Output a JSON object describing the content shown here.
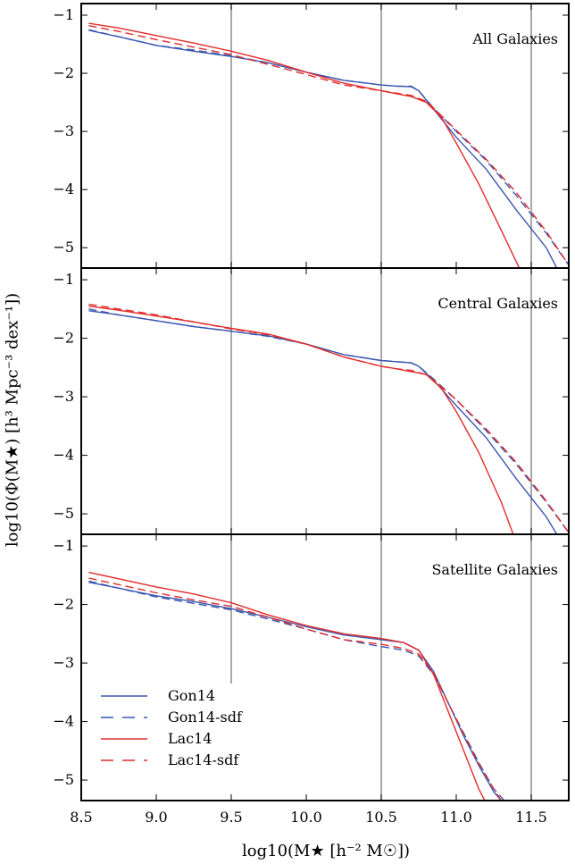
{
  "chart_data": {
    "type": "line",
    "layout": "three vertically stacked panels sharing the x axis",
    "xlabel": "log10(M★ [h⁻² M☉])",
    "ylabel": "log10(Φ(M★) [h³ Mpc⁻³ dex⁻¹])",
    "xlim": [
      8.5,
      11.75
    ],
    "ylim": [
      -5.35,
      -0.8
    ],
    "xticks": [
      8.5,
      9.0,
      9.5,
      10.0,
      10.5,
      11.0,
      11.5
    ],
    "xtick_labels": [
      "8.5",
      "9.0",
      "9.5",
      "10.0",
      "10.5",
      "11.0",
      "11.5"
    ],
    "yticks": [
      -1,
      -2,
      -3,
      -4,
      -5
    ],
    "ytick_labels": [
      "−1",
      "−2",
      "−3",
      "−4",
      "−5"
    ],
    "vlines": [
      9.5,
      10.5,
      11.5
    ],
    "legend_position": "lower-left of bottom panel",
    "legend": [
      {
        "label": "Gon14",
        "color": "#3a56b0",
        "dash": "solid"
      },
      {
        "label": "Gon14-sdf",
        "color": "#3a56b0",
        "dash": "dashed"
      },
      {
        "label": "Lac14",
        "color": "#e32b2b",
        "dash": "solid"
      },
      {
        "label": "Lac14-sdf",
        "color": "#e32b2b",
        "dash": "dashed"
      }
    ],
    "panels": [
      {
        "label": "All Galaxies",
        "vline_ranges": [
          [
            -5.35,
            -0.8
          ],
          [
            -5.35,
            -0.8
          ],
          [
            -5.35,
            -0.8
          ]
        ],
        "series": [
          {
            "name": "Gon14",
            "x": [
              8.55,
              8.75,
              9.0,
              9.25,
              9.5,
              9.75,
              10.0,
              10.25,
              10.5,
              10.6,
              10.7,
              10.75,
              10.85,
              11.0,
              11.2,
              11.4,
              11.6,
              11.67
            ],
            "y": [
              -1.26,
              -1.37,
              -1.52,
              -1.62,
              -1.71,
              -1.82,
              -1.98,
              -2.12,
              -2.2,
              -2.22,
              -2.23,
              -2.3,
              -2.62,
              -3.1,
              -3.65,
              -4.35,
              -5.0,
              -5.35
            ]
          },
          {
            "name": "Gon14-sdf",
            "x": [
              8.55,
              8.75,
              9.0,
              9.25,
              9.5,
              9.75,
              10.0,
              10.25,
              10.5,
              10.6,
              10.7,
              10.75,
              10.85,
              11.0,
              11.2,
              11.4,
              11.6,
              11.75
            ],
            "y": [
              -1.25,
              -1.37,
              -1.52,
              -1.6,
              -1.7,
              -1.82,
              -1.98,
              -2.12,
              -2.2,
              -2.22,
              -2.22,
              -2.3,
              -2.6,
              -3.0,
              -3.5,
              -4.1,
              -4.75,
              -5.3
            ]
          },
          {
            "name": "Lac14",
            "x": [
              8.55,
              8.75,
              9.0,
              9.25,
              9.5,
              9.75,
              10.0,
              10.25,
              10.5,
              10.6,
              10.7,
              10.8,
              10.9,
              11.0,
              11.15,
              11.3,
              11.42
            ],
            "y": [
              -1.14,
              -1.22,
              -1.35,
              -1.48,
              -1.62,
              -1.78,
              -1.98,
              -2.17,
              -2.3,
              -2.35,
              -2.4,
              -2.5,
              -2.75,
              -3.2,
              -3.9,
              -4.7,
              -5.35
            ]
          },
          {
            "name": "Lac14-sdf",
            "x": [
              8.55,
              8.75,
              9.0,
              9.25,
              9.5,
              9.75,
              10.0,
              10.25,
              10.5,
              10.6,
              10.7,
              10.8,
              10.85,
              11.0,
              11.2,
              11.4,
              11.6,
              11.75
            ],
            "y": [
              -1.18,
              -1.28,
              -1.42,
              -1.55,
              -1.68,
              -1.85,
              -2.02,
              -2.2,
              -2.3,
              -2.34,
              -2.38,
              -2.48,
              -2.6,
              -2.98,
              -3.48,
              -4.05,
              -4.72,
              -5.3
            ]
          }
        ]
      },
      {
        "label": "Central Galaxies",
        "vline_ranges": [
          [
            -5.35,
            -0.8
          ],
          [
            -5.35,
            -0.8
          ],
          [
            -5.35,
            -0.8
          ]
        ],
        "series": [
          {
            "name": "Gon14",
            "x": [
              8.55,
              8.75,
              9.0,
              9.25,
              9.5,
              9.75,
              10.0,
              10.25,
              10.5,
              10.6,
              10.7,
              10.75,
              10.85,
              11.0,
              11.2,
              11.4,
              11.6,
              11.67
            ],
            "y": [
              -1.53,
              -1.6,
              -1.7,
              -1.8,
              -1.88,
              -1.96,
              -2.1,
              -2.28,
              -2.38,
              -2.4,
              -2.42,
              -2.48,
              -2.72,
              -3.15,
              -3.7,
              -4.4,
              -5.05,
              -5.35
            ]
          },
          {
            "name": "Gon14-sdf",
            "x": [
              8.55,
              8.75,
              9.0,
              9.25,
              9.5,
              9.75,
              10.0,
              10.25,
              10.5,
              10.6,
              10.7,
              10.75,
              10.85,
              11.0,
              11.2,
              11.4,
              11.6,
              11.75
            ],
            "y": [
              -1.5,
              -1.6,
              -1.7,
              -1.8,
              -1.88,
              -1.97,
              -2.1,
              -2.28,
              -2.38,
              -2.4,
              -2.42,
              -2.48,
              -2.7,
              -3.05,
              -3.58,
              -4.15,
              -4.8,
              -5.32
            ]
          },
          {
            "name": "Lac14",
            "x": [
              8.55,
              8.75,
              9.0,
              9.25,
              9.5,
              9.75,
              10.0,
              10.25,
              10.5,
              10.6,
              10.7,
              10.8,
              10.9,
              11.0,
              11.15,
              11.3,
              11.38
            ],
            "y": [
              -1.45,
              -1.52,
              -1.62,
              -1.72,
              -1.83,
              -1.93,
              -2.1,
              -2.32,
              -2.48,
              -2.52,
              -2.57,
              -2.62,
              -2.85,
              -3.25,
              -3.95,
              -4.8,
              -5.35
            ]
          },
          {
            "name": "Lac14-sdf",
            "x": [
              8.55,
              8.75,
              9.0,
              9.25,
              9.5,
              9.75,
              10.0,
              10.25,
              10.5,
              10.6,
              10.7,
              10.8,
              10.85,
              11.0,
              11.2,
              11.4,
              11.6,
              11.75
            ],
            "y": [
              -1.42,
              -1.5,
              -1.6,
              -1.72,
              -1.84,
              -1.94,
              -2.1,
              -2.32,
              -2.48,
              -2.52,
              -2.55,
              -2.62,
              -2.72,
              -3.05,
              -3.55,
              -4.12,
              -4.78,
              -5.32
            ]
          }
        ]
      },
      {
        "label": "Satellite Galaxies",
        "vline_ranges": [
          [
            -3.35,
            -0.8
          ],
          [
            -5.35,
            -0.8
          ],
          [
            -5.35,
            -0.8
          ]
        ],
        "series": [
          {
            "name": "Gon14",
            "x": [
              8.55,
              8.75,
              9.0,
              9.25,
              9.5,
              9.75,
              10.0,
              10.25,
              10.5,
              10.65,
              10.75,
              10.85,
              10.95,
              11.05,
              11.15,
              11.25,
              11.3
            ],
            "y": [
              -1.62,
              -1.72,
              -1.85,
              -1.95,
              -2.07,
              -2.22,
              -2.38,
              -2.52,
              -2.6,
              -2.65,
              -2.78,
              -3.15,
              -3.7,
              -4.25,
              -4.75,
              -5.2,
              -5.35
            ]
          },
          {
            "name": "Gon14-sdf",
            "x": [
              8.55,
              8.75,
              9.0,
              9.25,
              9.5,
              9.75,
              10.0,
              10.25,
              10.5,
              10.65,
              10.75,
              10.85,
              10.95,
              11.05,
              11.15,
              11.25,
              11.32
            ],
            "y": [
              -1.6,
              -1.72,
              -1.87,
              -1.98,
              -2.09,
              -2.25,
              -2.42,
              -2.6,
              -2.72,
              -2.78,
              -2.88,
              -3.2,
              -3.7,
              -4.2,
              -4.7,
              -5.15,
              -5.35
            ]
          },
          {
            "name": "Lac14",
            "x": [
              8.55,
              8.75,
              9.0,
              9.25,
              9.5,
              9.75,
              10.0,
              10.25,
              10.5,
              10.65,
              10.75,
              10.85,
              10.95,
              11.05,
              11.15,
              11.19
            ],
            "y": [
              -1.45,
              -1.56,
              -1.7,
              -1.82,
              -1.97,
              -2.18,
              -2.36,
              -2.5,
              -2.58,
              -2.65,
              -2.78,
              -3.2,
              -3.85,
              -4.5,
              -5.15,
              -5.35
            ]
          },
          {
            "name": "Lac14-sdf",
            "x": [
              8.55,
              8.75,
              9.0,
              9.25,
              9.5,
              9.75,
              10.0,
              10.25,
              10.5,
              10.65,
              10.75,
              10.85,
              10.95,
              11.05,
              11.15,
              11.25,
              11.3
            ],
            "y": [
              -1.55,
              -1.66,
              -1.8,
              -1.92,
              -2.03,
              -2.22,
              -2.42,
              -2.6,
              -2.68,
              -2.75,
              -2.85,
              -3.18,
              -3.7,
              -4.22,
              -4.72,
              -5.15,
              -5.35
            ]
          }
        ]
      }
    ]
  }
}
